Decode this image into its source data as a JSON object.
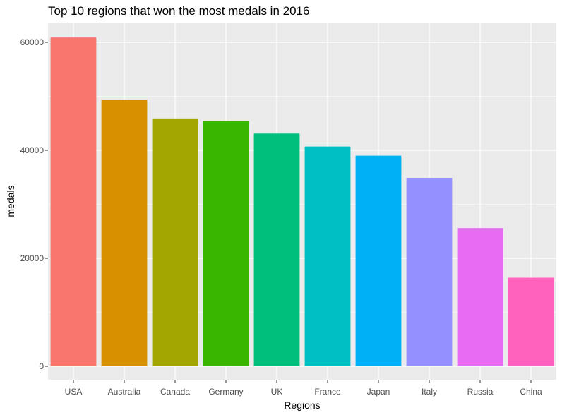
{
  "chart_data": {
    "type": "bar",
    "title": "Top 10 regions that won the most medals in 2016",
    "xlabel": "Regions",
    "ylabel": "medals",
    "categories": [
      "USA",
      "Australia",
      "Canada",
      "Germany",
      "UK",
      "France",
      "Japan",
      "Italy",
      "Russia",
      "China"
    ],
    "values": [
      60900,
      49400,
      45900,
      45400,
      43100,
      40700,
      39000,
      34900,
      25600,
      16400
    ],
    "colors": [
      "#F8766D",
      "#D89000",
      "#A3A500",
      "#39B600",
      "#00BF7D",
      "#00BFC4",
      "#00B0F6",
      "#9590FF",
      "#E76BF3",
      "#FF62BC"
    ],
    "y_ticks": [
      0,
      20000,
      40000,
      60000
    ],
    "y_tick_labels": [
      "0",
      "20000",
      "40000",
      "60000"
    ],
    "ylim": [
      0,
      61000
    ],
    "grid": true,
    "panel_background": "#EBEBEB",
    "legend": "none"
  }
}
